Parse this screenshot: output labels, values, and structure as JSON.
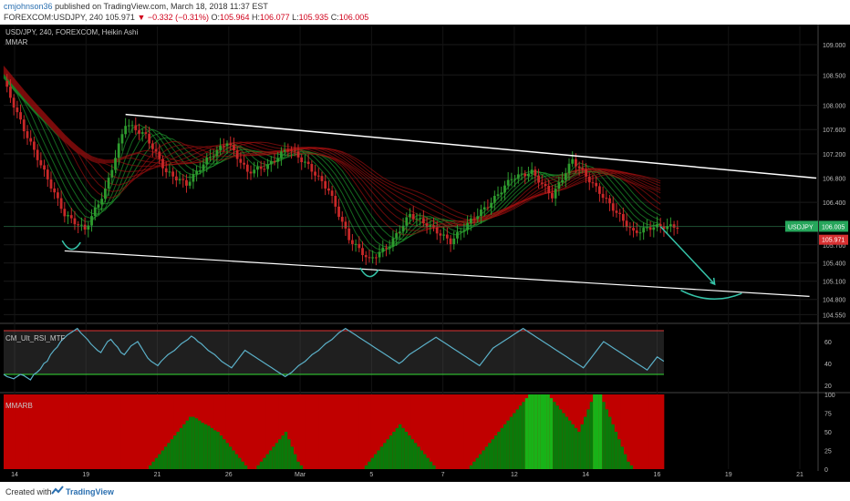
{
  "header": {
    "author": "cmjohnson36",
    "published": "published on TradingView.com, March 18, 2018 11:37 EST",
    "symbol_line": "FOREXCOM:USDJPY, 240",
    "last": "105.971",
    "change_arrow": "▼",
    "change": "−0.332 (−0.31%)",
    "o_label": "O:",
    "o_value": "105.964",
    "h_label": "H:",
    "h_value": "106.077",
    "l_label": "L:",
    "l_value": "105.935",
    "c_label": "C:",
    "c_value": "106.005"
  },
  "legends": {
    "main_title": "USD/JPY, 240, FOREXCOM, Heikin Ashi",
    "main_indicator": "MMAR",
    "rsi_indicator": "CM_Ult_RSI_MTF",
    "mmarb_indicator": "MMARB"
  },
  "price_badges": {
    "symbol": "USDJPY",
    "current": "106.005",
    "secondary": "105.971"
  },
  "footer": {
    "created_with": "Created with",
    "brand": "TradingView"
  },
  "colors": {
    "up": "#2e9b2e",
    "down": "#c82828",
    "ribbon_red": "#a01010",
    "ribbon_green": "#20a030",
    "rsi_line": "#5bb0c8",
    "trendline": "#ffffff",
    "arrow": "#35c3a8",
    "badge_green": "#26a65b",
    "badge_red": "#d63031"
  },
  "chart_data": [
    {
      "type": "candlestick",
      "title": "USD/JPY, 240, FOREXCOM, Heikin Ashi",
      "x_ticks": [
        "14",
        "19",
        "21",
        "26",
        "Mar",
        "5",
        "7",
        "12",
        "14",
        "16",
        "19",
        "21"
      ],
      "y_ticks": [
        109.0,
        108.5,
        108.0,
        107.6,
        107.2,
        106.8,
        106.4,
        106.0,
        105.7,
        105.4,
        105.1,
        104.8,
        104.55
      ],
      "ylim": [
        104.45,
        109.3
      ],
      "trend_points": [
        {
          "t": 0,
          "v": 108.4
        },
        {
          "t": 6,
          "v": 107.6
        },
        {
          "t": 12,
          "v": 106.9
        },
        {
          "t": 18,
          "v": 106.2
        },
        {
          "t": 24,
          "v": 105.95
        },
        {
          "t": 30,
          "v": 106.6
        },
        {
          "t": 36,
          "v": 107.7
        },
        {
          "t": 42,
          "v": 107.5
        },
        {
          "t": 48,
          "v": 106.9
        },
        {
          "t": 54,
          "v": 106.7
        },
        {
          "t": 60,
          "v": 107.1
        },
        {
          "t": 66,
          "v": 107.4
        },
        {
          "t": 72,
          "v": 106.9
        },
        {
          "t": 78,
          "v": 107.0
        },
        {
          "t": 84,
          "v": 107.3
        },
        {
          "t": 90,
          "v": 107.0
        },
        {
          "t": 96,
          "v": 106.6
        },
        {
          "t": 102,
          "v": 105.8
        },
        {
          "t": 108,
          "v": 105.45
        },
        {
          "t": 114,
          "v": 105.7
        },
        {
          "t": 120,
          "v": 106.2
        },
        {
          "t": 126,
          "v": 106.0
        },
        {
          "t": 132,
          "v": 105.75
        },
        {
          "t": 138,
          "v": 106.1
        },
        {
          "t": 144,
          "v": 106.4
        },
        {
          "t": 150,
          "v": 106.8
        },
        {
          "t": 156,
          "v": 106.9
        },
        {
          "t": 162,
          "v": 106.5
        },
        {
          "t": 168,
          "v": 107.1
        },
        {
          "t": 174,
          "v": 106.7
        },
        {
          "t": 180,
          "v": 106.3
        },
        {
          "t": 186,
          "v": 105.9
        },
        {
          "t": 192,
          "v": 106.0
        }
      ],
      "upper_trendline": [
        {
          "t": 36,
          "v": 107.85
        },
        {
          "t": 240,
          "v": 106.8
        }
      ],
      "lower_trendline": [
        {
          "t": 18,
          "v": 105.6
        },
        {
          "t": 238,
          "v": 104.85
        }
      ],
      "projection": [
        {
          "t": 194,
          "v": 106.0
        },
        {
          "t": 210,
          "v": 105.05
        },
        {
          "t": 200,
          "v": 104.95
        },
        {
          "t": 218,
          "v": 104.9
        }
      ]
    },
    {
      "type": "line",
      "title": "CM_Ult_RSI_MTF",
      "y_ticks": [
        60,
        40,
        20
      ],
      "ylim": [
        15,
        75
      ],
      "bands": [
        70,
        30
      ],
      "values": [
        30,
        28,
        27,
        26,
        28,
        30,
        29,
        27,
        25,
        30,
        32,
        35,
        40,
        42,
        48,
        52,
        55,
        60,
        63,
        66,
        68,
        70,
        72,
        68,
        65,
        62,
        58,
        55,
        52,
        50,
        55,
        60,
        62,
        58,
        55,
        50,
        48,
        52,
        56,
        58,
        60,
        55,
        50,
        45,
        42,
        40,
        38,
        42,
        45,
        48,
        50,
        52,
        55,
        58,
        60,
        62,
        65,
        63,
        60,
        58,
        55,
        52,
        50,
        48,
        45,
        42,
        40,
        38,
        36,
        40,
        44,
        48,
        52,
        50,
        48,
        46,
        44,
        42,
        40,
        38,
        36,
        34,
        32,
        30,
        28,
        30,
        32,
        35,
        38,
        40,
        42,
        45,
        48,
        50,
        52,
        55,
        58,
        60,
        62,
        65,
        68,
        70,
        72,
        70,
        68,
        66,
        64,
        62,
        60,
        58,
        56,
        54,
        52,
        50,
        48,
        46,
        44,
        42,
        40,
        42,
        45,
        48,
        50,
        52,
        54,
        56,
        58,
        60,
        62,
        64,
        62,
        60,
        58,
        56,
        54,
        52,
        50,
        48,
        46,
        44,
        42,
        40,
        38,
        42,
        46,
        50,
        54,
        56,
        58,
        60,
        62,
        64,
        66,
        68,
        70,
        72,
        70,
        68,
        66,
        64,
        62,
        60,
        58,
        56,
        54,
        52,
        50,
        48,
        46,
        44,
        42,
        40,
        38,
        36,
        40,
        44,
        48,
        52,
        56,
        60,
        58,
        56,
        54,
        52,
        50,
        48,
        46,
        44,
        42,
        40,
        38,
        36,
        34,
        38,
        42,
        46,
        44,
        42
      ]
    },
    {
      "type": "area",
      "title": "MMARB",
      "y_ticks": [
        100,
        75,
        50,
        25,
        0
      ],
      "ylim": [
        0,
        100
      ],
      "green_pct": [
        0,
        0,
        0,
        0,
        0,
        0,
        0,
        0,
        0,
        0,
        0,
        0,
        0,
        0,
        0,
        0,
        0,
        0,
        0,
        0,
        0,
        0,
        0,
        0,
        0,
        0,
        0,
        0,
        0,
        0,
        0,
        0,
        0,
        0,
        0,
        0,
        0,
        0,
        0,
        0,
        0,
        0,
        0,
        0,
        0,
        0,
        0,
        5,
        10,
        15,
        20,
        25,
        30,
        35,
        40,
        45,
        50,
        55,
        60,
        65,
        70,
        70,
        68,
        65,
        62,
        60,
        58,
        55,
        52,
        50,
        45,
        40,
        35,
        30,
        25,
        20,
        15,
        10,
        5,
        0,
        0,
        0,
        5,
        10,
        15,
        20,
        25,
        30,
        35,
        40,
        45,
        50,
        40,
        30,
        20,
        10,
        5,
        0,
        0,
        0,
        0,
        0,
        0,
        0,
        0,
        0,
        0,
        0,
        0,
        0,
        0,
        0,
        0,
        0,
        0,
        0,
        0,
        5,
        10,
        15,
        20,
        25,
        30,
        35,
        40,
        45,
        50,
        55,
        60,
        55,
        50,
        45,
        40,
        35,
        30,
        25,
        20,
        15,
        10,
        5,
        0,
        0,
        0,
        0,
        0,
        0,
        0,
        0,
        0,
        0,
        0,
        5,
        10,
        15,
        20,
        25,
        30,
        35,
        40,
        45,
        50,
        55,
        60,
        65,
        70,
        75,
        80,
        85,
        90,
        95,
        100,
        100,
        100,
        100,
        100,
        100,
        100,
        95,
        90,
        85,
        80,
        75,
        70,
        65,
        60,
        55,
        50,
        60,
        70,
        80,
        90,
        100,
        100,
        100,
        90,
        80,
        70,
        60,
        50,
        40,
        30,
        20,
        10,
        5,
        0,
        0,
        0,
        0,
        0,
        0,
        0,
        0,
        0,
        0
      ]
    }
  ]
}
